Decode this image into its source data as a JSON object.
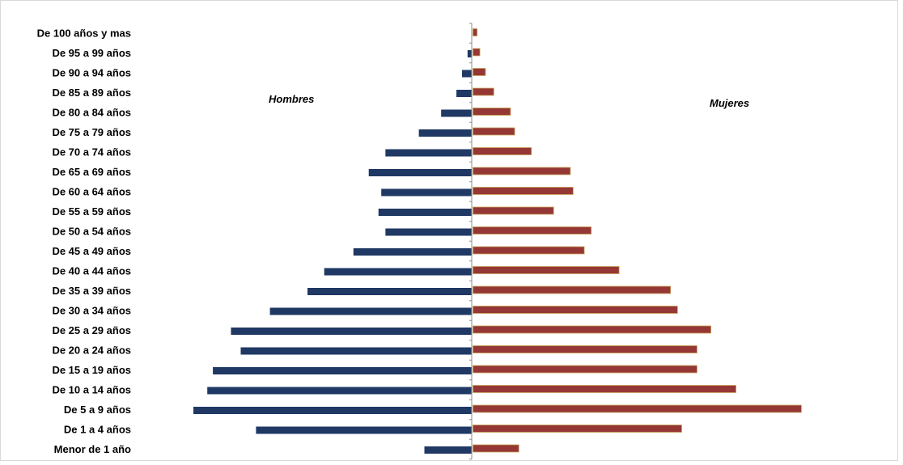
{
  "chart_data": {
    "type": "bar",
    "orientation": "horizontal",
    "title": "",
    "xlabel": "",
    "ylabel": "",
    "grid": false,
    "legend": "none",
    "categories": [
      "De 100 años y mas",
      "De 95 a 99 años",
      "De 90 a 94 años",
      "De 85 a 89 años",
      "De 80 a 84 años",
      "De 75 a 79 años",
      "De 70 a 74 años",
      "De 65 a 69 años",
      "De 60 a 64 años",
      "De 55 a 59 años",
      "De 50 a 54 años",
      "De 45 a 49 años",
      "De 40 a 44 años",
      "De 35 a 39 años",
      "De 30 a 34 años",
      "De 25 a 29 años",
      "De 20 a 24 años",
      "De 15 a 19 años",
      "De 10 a 14 años",
      "De 5 a 9 años",
      "De 1 a 4 años",
      "Menor de 1 año"
    ],
    "series": [
      {
        "name": "Hombres",
        "color": "#1f3864",
        "values": [
          0,
          3,
          7,
          11,
          22,
          38,
          62,
          74,
          65,
          67,
          62,
          85,
          106,
          118,
          145,
          173,
          166,
          186,
          190,
          200,
          155,
          34
        ]
      },
      {
        "name": "Mujeres",
        "color": "#953735",
        "values": [
          3,
          5,
          9,
          15,
          27,
          30,
          42,
          70,
          72,
          58,
          85,
          80,
          105,
          142,
          147,
          171,
          161,
          161,
          189,
          236,
          150,
          33
        ]
      }
    ],
    "xlim": [
      -200,
      236
    ]
  }
}
